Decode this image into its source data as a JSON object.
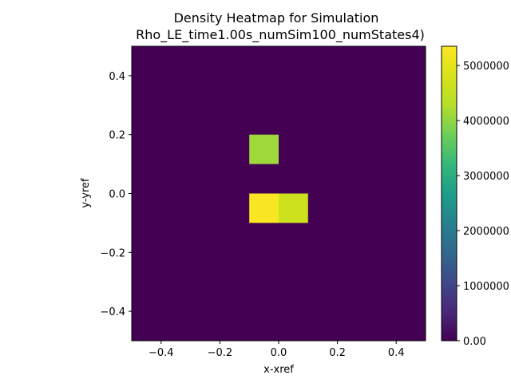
{
  "chart_data": {
    "type": "heatmap",
    "title": "Density Heatmap for Simulation",
    "subtitle": "Rho_LE_time1.00s_numSim100_numStates4)",
    "xlabel": "x-xref",
    "ylabel": "y-yref",
    "xlim": [
      -0.5,
      0.5
    ],
    "ylim": [
      -0.5,
      0.5
    ],
    "bin_size": 0.1,
    "x_ticks": [
      -0.4,
      -0.2,
      0.0,
      0.2,
      0.4
    ],
    "y_ticks": [
      -0.4,
      -0.2,
      0.0,
      0.2,
      0.4
    ],
    "x_tick_labels": [
      "−0.4",
      "−0.2",
      "0.0",
      "0.2",
      "0.4"
    ],
    "y_tick_labels": [
      "−0.4",
      "−0.2",
      "0.0",
      "0.2",
      "0.4"
    ],
    "colormap": "viridis",
    "background_value": 0,
    "cells": [
      {
        "x": [
          -0.1,
          0.0
        ],
        "y": [
          0.1,
          0.2
        ],
        "value": 4100000
      },
      {
        "x": [
          -0.1,
          0.0
        ],
        "y": [
          -0.1,
          0.0
        ],
        "value": 5300000
      },
      {
        "x": [
          0.0,
          0.1
        ],
        "y": [
          -0.1,
          0.0
        ],
        "value": 4650000
      }
    ],
    "colorbar": {
      "min": 0,
      "max": 5350000,
      "ticks": [
        0,
        1000000,
        2000000,
        3000000,
        4000000,
        5000000
      ],
      "tick_labels": [
        "0.00",
        "1000000",
        "2000000",
        "3000000",
        "4000000",
        "5000000"
      ]
    },
    "grid": false
  }
}
